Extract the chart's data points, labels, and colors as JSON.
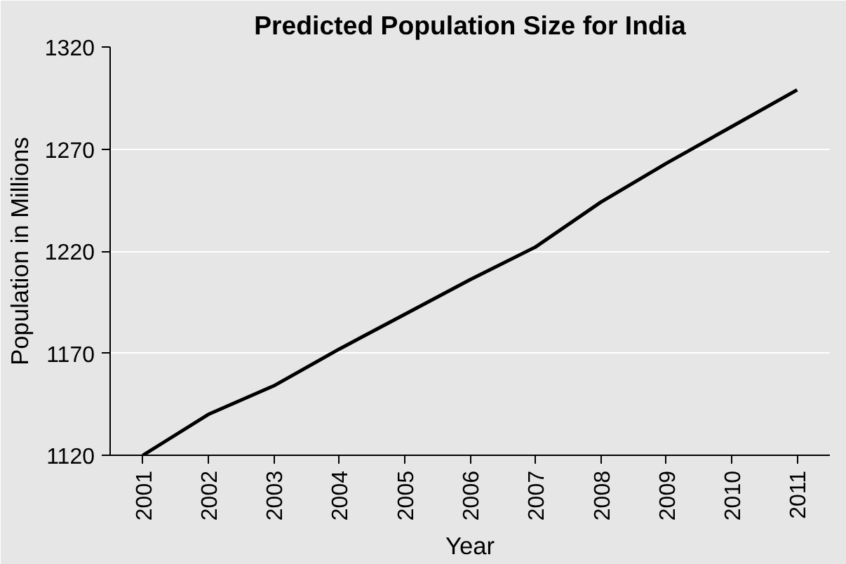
{
  "chart_data": {
    "type": "line",
    "title": "Predicted Population Size for India",
    "xlabel": "Year",
    "ylabel": "Population in Millions",
    "categories": [
      "2001",
      "2002",
      "2003",
      "2004",
      "2005",
      "2006",
      "2007",
      "2008",
      "2009",
      "2010",
      "2011"
    ],
    "series": [
      {
        "color": "#000000",
        "values": [
          1120,
          1140,
          1154,
          1172,
          1189,
          1206,
          1222,
          1244,
          1263,
          1281,
          1299
        ]
      }
    ],
    "ylim": [
      1120,
      1320
    ],
    "yticks": [
      1120,
      1170,
      1220,
      1270,
      1320
    ],
    "grid": "y",
    "marker": "none",
    "line_style": "solid"
  }
}
